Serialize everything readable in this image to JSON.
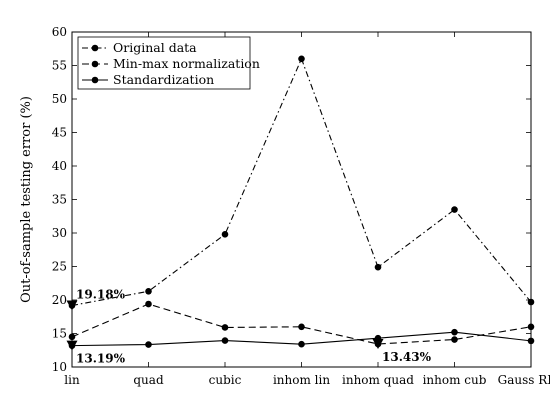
{
  "chart_data": {
    "type": "line",
    "categories": [
      "lin",
      "quad",
      "cubic",
      "inhom lin",
      "inhom quad",
      "inhom cub",
      "Gauss RBF"
    ],
    "ylabel": "Out-of-sample testing error (%)",
    "xlabel": "",
    "ylim": [
      10,
      60
    ],
    "yticks": [
      10,
      15,
      20,
      25,
      30,
      35,
      40,
      45,
      50,
      55,
      60
    ],
    "grid": false,
    "legend_position": "top-left",
    "series": [
      {
        "name": "Original data",
        "style": "dash-dot",
        "marker": "circle",
        "values": [
          19.18,
          21.3,
          29.8,
          56.0,
          24.9,
          33.5,
          19.7
        ]
      },
      {
        "name": "Min-max normalization",
        "style": "dashed",
        "marker": "circle",
        "values": [
          14.5,
          19.4,
          15.9,
          16.0,
          13.43,
          14.1,
          16.0
        ]
      },
      {
        "name": "Standardization",
        "style": "solid",
        "marker": "circle",
        "values": [
          13.19,
          13.35,
          13.95,
          13.4,
          14.3,
          15.2,
          13.9
        ]
      }
    ],
    "annotations": [
      {
        "text": "19.18%",
        "series": 0,
        "category": "lin",
        "value": 19.18,
        "marker": "triangle-down",
        "anchor": "above-right"
      },
      {
        "text": "13.19%",
        "series": 2,
        "category": "lin",
        "value": 13.19,
        "marker": "triangle-down",
        "anchor": "below-right"
      },
      {
        "text": "13.43%",
        "series": 1,
        "category": "inhom quad",
        "value": 13.43,
        "marker": "triangle-down",
        "anchor": "below-right"
      }
    ]
  }
}
